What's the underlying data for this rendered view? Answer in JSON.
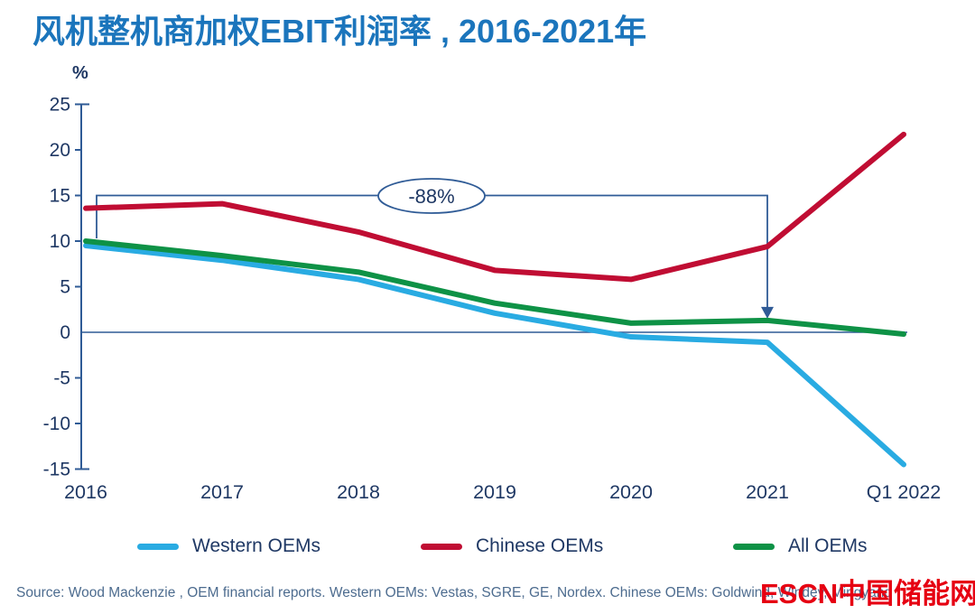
{
  "title": "风机整机商加权EBIT利润率 , 2016-2021年",
  "chart_data": {
    "type": "line",
    "title": "风机整机商加权EBIT利润率 , 2016-2021年",
    "ylabel": "%",
    "xlabel": "",
    "ylim": [
      -15,
      25
    ],
    "yticks": [
      25,
      20,
      15,
      10,
      5,
      0,
      -5,
      -10,
      -15
    ],
    "grid": false,
    "legend_position": "bottom",
    "categories": [
      "2016",
      "2017",
      "2018",
      "2019",
      "2020",
      "2021",
      "Q1 2022"
    ],
    "series": [
      {
        "name": "Western OEMs",
        "color": "#29ABE2",
        "values": [
          9.5,
          7.9,
          5.8,
          2.1,
          -0.5,
          -1.1,
          -14.5
        ]
      },
      {
        "name": "All OEMs",
        "color": "#0E9246",
        "values": [
          10.0,
          8.4,
          6.6,
          3.2,
          1.0,
          1.3,
          -0.2
        ]
      },
      {
        "name": "Chinese OEMs",
        "color": "#C00D33",
        "values": [
          13.6,
          14.1,
          11.0,
          6.8,
          5.8,
          9.4,
          21.7
        ]
      }
    ],
    "legend_order": [
      "Western OEMs",
      "Chinese OEMs",
      "All OEMs"
    ],
    "annotation": {
      "label": "-88%",
      "level": 15,
      "from_category": "2016",
      "to_category": "2021",
      "from_value": 10.0,
      "to_value": 1.3
    }
  },
  "colors": {
    "title_blue": "#1B75BC",
    "axis_navy": "#1F3864",
    "annotation_stroke": "#2F5B96",
    "source_text": "#4D6C8F",
    "watermark_red": "#E60012"
  },
  "source": {
    "visible_text": "Source: Wood Mackenzie , OEM financial reports. Western OEMs: Vestas, SGRE, GE, Nordex.  Chinese OEMs: G",
    "obscured_text": "oldwind, Windey, Mingyang"
  },
  "watermark": {
    "text": "ESCN中国储能网"
  }
}
